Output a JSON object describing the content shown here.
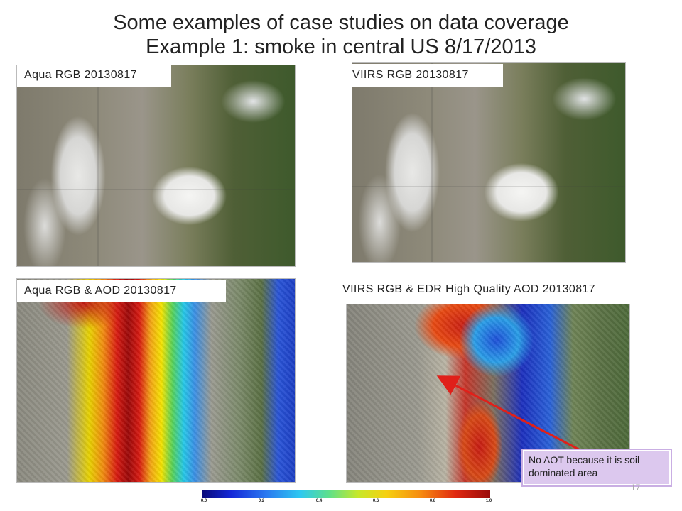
{
  "title_line1": "Some examples of case studies on data coverage",
  "title_line2": "Example 1: smoke in central US 8/17/2013",
  "panels": [
    {
      "label": "Aqua RGB 20130817"
    },
    {
      "label": "VIIRS RGB 20130817"
    },
    {
      "label": "Aqua RGB & AOD 20130817"
    },
    {
      "label": "VIIRS RGB & EDR High Quality AOD 20130817"
    }
  ],
  "callout": "No AOT because it is soil dominated area",
  "colorbar": {
    "ticks": [
      "0.0",
      "0.2",
      "0.4",
      "0.6",
      "0.8",
      "1.0"
    ],
    "colors": {
      "low": "#0a0a7a",
      "high": "#9a0a0a"
    }
  },
  "page_number": "17",
  "arrow_color": "#e0201a"
}
